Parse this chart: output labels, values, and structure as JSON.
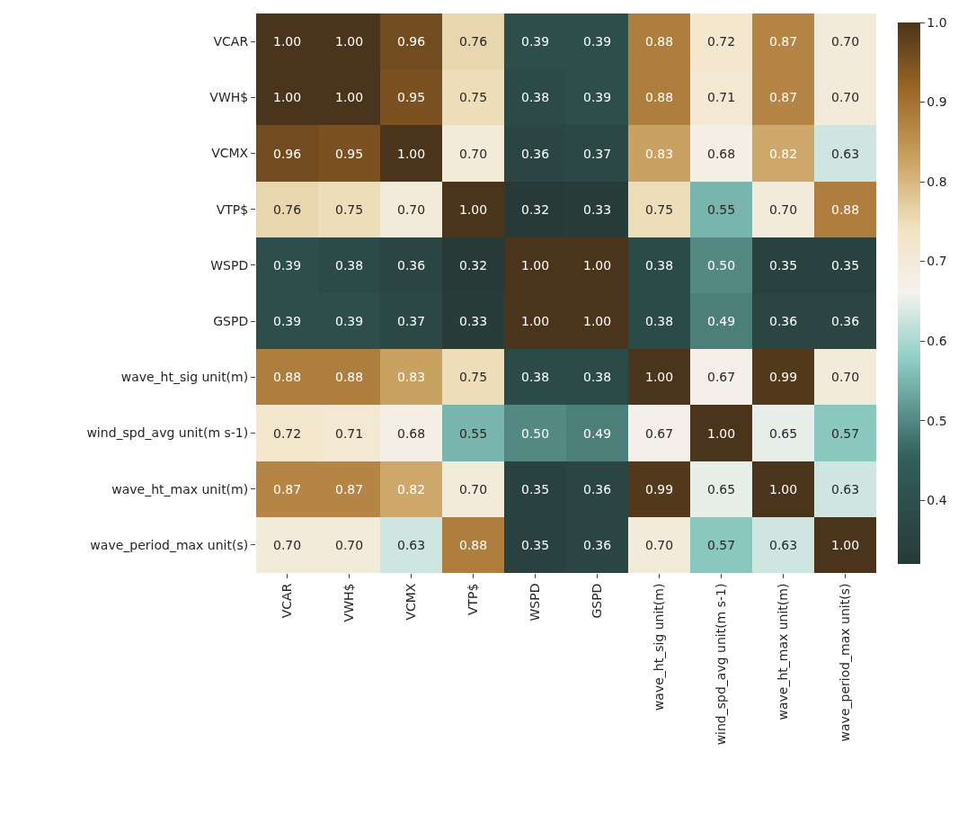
{
  "chart_data": {
    "type": "heatmap",
    "categories": [
      "VCAR",
      "VWH$",
      "VCMX",
      "VTP$",
      "WSPD",
      "GSPD",
      "wave_ht_sig unit(m)",
      "wind_spd_avg unit(m s-1)",
      "wave_ht_max unit(m)",
      "wave_period_max unit(s)"
    ],
    "y_categories": [
      "VCAR",
      "VWH$",
      "VCMX",
      "VTP$",
      "WSPD",
      "GSPD",
      "wave_ht_sig unit(m)",
      "wind_spd_avg unit(m s-1)",
      "wave_ht_max unit(m)",
      "wave_period_max unit(s)"
    ],
    "cells": [
      [
        1.0,
        1.0,
        0.96,
        0.76,
        0.39,
        0.39,
        0.88,
        0.72,
        0.87,
        0.7
      ],
      [
        1.0,
        1.0,
        0.95,
        0.75,
        0.38,
        0.39,
        0.88,
        0.71,
        0.87,
        0.7
      ],
      [
        0.96,
        0.95,
        1.0,
        0.7,
        0.36,
        0.37,
        0.83,
        0.68,
        0.82,
        0.63
      ],
      [
        0.76,
        0.75,
        0.7,
        1.0,
        0.32,
        0.33,
        0.75,
        0.55,
        0.7,
        0.88
      ],
      [
        0.39,
        0.38,
        0.36,
        0.32,
        1.0,
        1.0,
        0.38,
        0.5,
        0.35,
        0.35
      ],
      [
        0.39,
        0.39,
        0.37,
        0.33,
        1.0,
        1.0,
        0.38,
        0.49,
        0.36,
        0.36
      ],
      [
        0.88,
        0.88,
        0.83,
        0.75,
        0.38,
        0.38,
        1.0,
        0.67,
        0.99,
        0.7
      ],
      [
        0.72,
        0.71,
        0.68,
        0.55,
        0.5,
        0.49,
        0.67,
        1.0,
        0.65,
        0.57
      ],
      [
        0.87,
        0.87,
        0.82,
        0.7,
        0.35,
        0.36,
        0.99,
        0.65,
        1.0,
        0.63
      ],
      [
        0.7,
        0.7,
        0.63,
        0.88,
        0.35,
        0.36,
        0.7,
        0.57,
        0.63,
        1.0
      ]
    ],
    "clim": [
      0.32,
      1.0
    ],
    "cticks": [
      0.4,
      0.5,
      0.6,
      0.7,
      0.8,
      0.9,
      {
        "value": 1,
        "label": "1.0"
      }
    ],
    "cell_labels": [
      [
        "1.00",
        "1.00",
        "0.96",
        "0.76",
        "0.39",
        "0.39",
        "0.88",
        "0.72",
        "0.87",
        "0.70"
      ],
      [
        "1.00",
        "1.00",
        "0.95",
        "0.75",
        "0.38",
        "0.39",
        "0.88",
        "0.71",
        "0.87",
        "0.70"
      ],
      [
        "0.96",
        "0.95",
        "1.00",
        "0.70",
        "0.36",
        "0.37",
        "0.83",
        "0.68",
        "0.82",
        "0.63"
      ],
      [
        "0.76",
        "0.75",
        "0.70",
        "1.00",
        "0.32",
        "0.33",
        "0.75",
        "0.55",
        "0.70",
        "0.88"
      ],
      [
        "0.39",
        "0.38",
        "0.36",
        "0.32",
        "1.00",
        "1.00",
        "0.38",
        "0.50",
        "0.35",
        "0.35"
      ],
      [
        "0.39",
        "0.39",
        "0.37",
        "0.33",
        "1.00",
        "1.00",
        "0.38",
        "0.49",
        "0.36",
        "0.36"
      ],
      [
        "0.88",
        "0.88",
        "0.83",
        "0.75",
        "0.38",
        "0.38",
        "1.00",
        "0.67",
        "0.99",
        "0.70"
      ],
      [
        "0.72",
        "0.71",
        "0.68",
        "0.55",
        "0.50",
        "0.49",
        "0.67",
        "1.00",
        "0.65",
        "0.57"
      ],
      [
        "0.87",
        "0.87",
        "0.82",
        "0.70",
        "0.35",
        "0.36",
        "0.99",
        "0.65",
        "1.00",
        "0.63"
      ],
      [
        "0.70",
        "0.70",
        "0.63",
        "0.88",
        "0.35",
        "0.36",
        "0.70",
        "0.57",
        "0.63",
        "1.00"
      ]
    ],
    "data_labels": true
  }
}
